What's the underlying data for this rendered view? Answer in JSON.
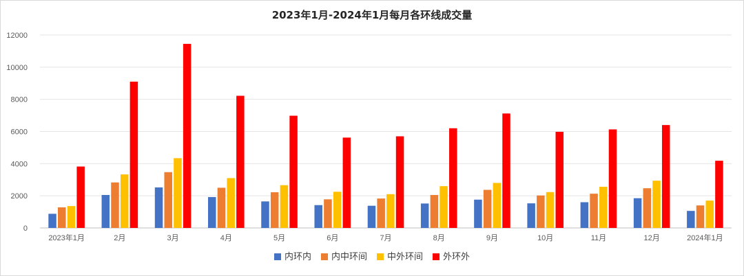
{
  "chart_data": {
    "type": "bar",
    "title": "2023年1月-2024年1月每月各环线成交量",
    "xlabel": "",
    "ylabel": "",
    "ylim": [
      0,
      12000
    ],
    "yticks": [
      0,
      2000,
      4000,
      6000,
      8000,
      10000,
      12000
    ],
    "grid": true,
    "legend_position": "bottom",
    "categories": [
      "2023年1月",
      "2月",
      "3月",
      "4月",
      "5月",
      "6月",
      "7月",
      "8月",
      "9月",
      "10月",
      "11月",
      "12月",
      "2024年1月"
    ],
    "series": [
      {
        "name": "内环内",
        "color": "#4472C4",
        "values": [
          880,
          2050,
          2520,
          1920,
          1650,
          1420,
          1380,
          1520,
          1760,
          1530,
          1600,
          1850,
          1060
        ]
      },
      {
        "name": "内中环间",
        "color": "#ED7D31",
        "values": [
          1280,
          2830,
          3470,
          2500,
          2220,
          1780,
          1830,
          2050,
          2370,
          2020,
          2130,
          2470,
          1400
        ]
      },
      {
        "name": "中外环间",
        "color": "#FFC000",
        "values": [
          1360,
          3330,
          4340,
          3100,
          2660,
          2250,
          2100,
          2600,
          2800,
          2230,
          2560,
          2940,
          1700
        ]
      },
      {
        "name": "外环外",
        "color": "#FF0000",
        "values": [
          3820,
          9100,
          11450,
          8220,
          6980,
          5620,
          5700,
          6200,
          7120,
          5980,
          6130,
          6400,
          4180
        ]
      }
    ]
  }
}
